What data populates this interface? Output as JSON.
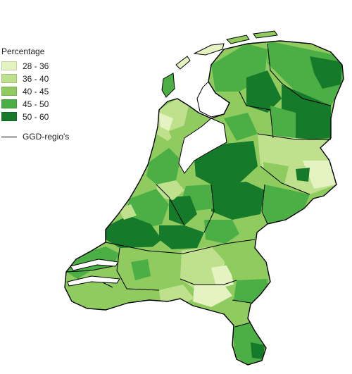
{
  "legend": {
    "title": "Percentage",
    "classes": [
      {
        "label": "28 - 36",
        "color": "#e5f2c2"
      },
      {
        "label": "36 - 40",
        "color": "#bfe18d"
      },
      {
        "label": "40 - 45",
        "color": "#8fcb5e"
      },
      {
        "label": "45 - 50",
        "color": "#4caf45"
      },
      {
        "label": "50 - 60",
        "color": "#157a2a"
      }
    ],
    "boundary_label": "GGD-regio's",
    "boundary_color": "#000000"
  },
  "map": {
    "region": "Nederland",
    "water_color": "#ffffff"
  }
}
